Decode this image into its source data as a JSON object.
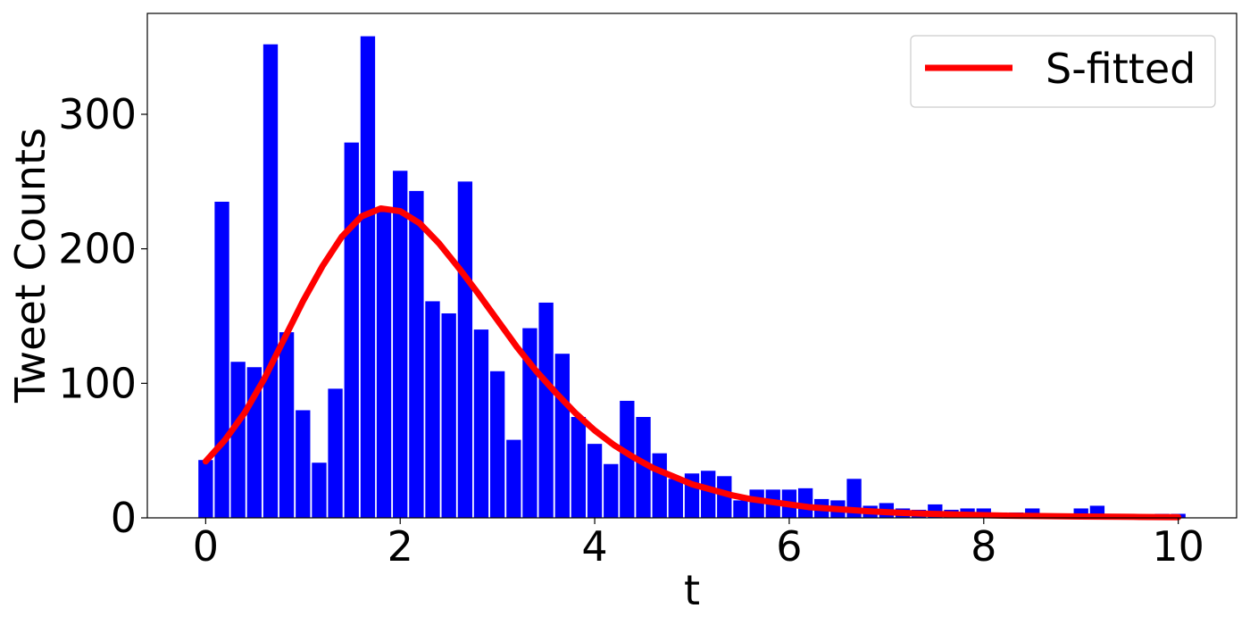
{
  "chart_data": {
    "type": "bar",
    "xlabel": "t",
    "ylabel": "Tweet Counts",
    "xlim": [
      -0.6,
      10.6
    ],
    "ylim": [
      0,
      375
    ],
    "xticks": [
      0,
      2,
      4,
      6,
      8,
      10
    ],
    "yticks": [
      0,
      100,
      200,
      300
    ],
    "bin_width": 0.1667,
    "bar_color": "#0000ff",
    "legend_position": "top-right",
    "bars": {
      "x": [
        0.0,
        0.167,
        0.333,
        0.5,
        0.667,
        0.833,
        1.0,
        1.167,
        1.333,
        1.5,
        1.667,
        1.833,
        2.0,
        2.167,
        2.333,
        2.5,
        2.667,
        2.833,
        3.0,
        3.167,
        3.333,
        3.5,
        3.667,
        3.833,
        4.0,
        4.167,
        4.333,
        4.5,
        4.667,
        4.833,
        5.0,
        5.167,
        5.333,
        5.5,
        5.667,
        5.833,
        6.0,
        6.167,
        6.333,
        6.5,
        6.667,
        6.833,
        7.0,
        7.167,
        7.333,
        7.5,
        7.667,
        7.833,
        8.0,
        8.167,
        8.333,
        8.5,
        8.667,
        8.833,
        9.0,
        9.167,
        9.333,
        9.5,
        9.667,
        9.833,
        10.0
      ],
      "values": [
        43,
        235,
        116,
        112,
        352,
        138,
        80,
        41,
        96,
        279,
        358,
        229,
        258,
        243,
        161,
        152,
        250,
        140,
        109,
        58,
        141,
        160,
        122,
        75,
        55,
        40,
        87,
        75,
        48,
        29,
        33,
        35,
        31,
        13,
        21,
        21,
        21,
        22,
        14,
        13,
        29,
        9,
        11,
        7,
        6,
        10,
        6,
        7,
        7,
        4,
        4,
        7,
        2,
        2,
        7,
        9,
        2,
        2,
        2,
        3,
        3
      ]
    },
    "series": [
      {
        "name": "S-fitted",
        "color": "#ff0000",
        "x": [
          0.0,
          0.2,
          0.4,
          0.6,
          0.8,
          1.0,
          1.2,
          1.4,
          1.6,
          1.8,
          2.0,
          2.2,
          2.4,
          2.6,
          2.8,
          3.0,
          3.2,
          3.4,
          3.6,
          3.8,
          4.0,
          4.2,
          4.4,
          4.6,
          4.8,
          5.0,
          5.2,
          5.4,
          5.6,
          5.8,
          6.0,
          6.2,
          6.4,
          6.6,
          6.8,
          7.0,
          7.2,
          7.4,
          7.6,
          7.8,
          8.0,
          8.2,
          8.4,
          8.6,
          8.8,
          9.0,
          9.2,
          9.4,
          9.6,
          9.8,
          10.0
        ],
        "values": [
          42,
          58,
          78,
          103,
          132,
          161,
          187,
          209,
          224,
          230,
          228,
          219,
          204,
          186,
          167,
          147,
          127,
          109,
          93,
          78,
          65,
          54,
          45,
          37,
          31,
          25,
          21,
          17,
          14,
          12,
          10,
          8,
          7,
          6,
          5,
          4.2,
          3.6,
          3.1,
          2.7,
          2.3,
          2.0,
          1.7,
          1.5,
          1.3,
          1.2,
          1.0,
          0.9,
          0.8,
          0.7,
          0.6,
          0.5
        ]
      }
    ]
  }
}
